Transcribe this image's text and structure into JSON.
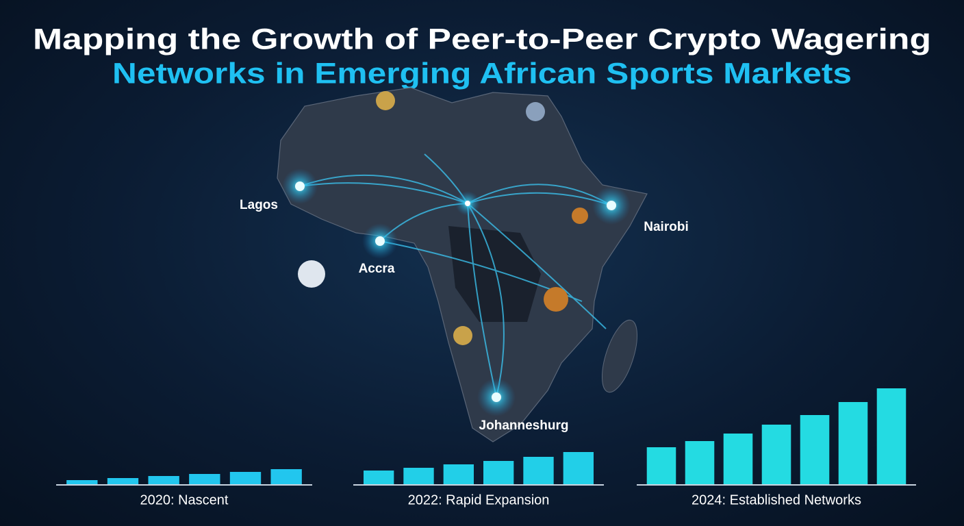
{
  "title": [
    "Mapping the Growth of Peer-to-Peer Crypto Wagering",
    "Networks in Emerging African Sports Markets"
  ],
  "map": {
    "cities": [
      "Lagos",
      "Accra",
      "Nairobi",
      "Johanneshurg"
    ]
  },
  "chart_data": [
    {
      "type": "bar",
      "title": "2020: Nascent",
      "categories": [
        null,
        null,
        null,
        null,
        null,
        null
      ],
      "values": [
        6,
        9,
        12,
        15,
        18,
        22
      ],
      "color": "#22c6ee",
      "ylim": [
        0,
        150
      ]
    },
    {
      "type": "bar",
      "title": "2022: Rapid Expansion",
      "categories": [
        null,
        null,
        null,
        null,
        null,
        null
      ],
      "values": [
        20,
        24,
        29,
        34,
        40,
        47
      ],
      "color": "#22cfe8",
      "ylim": [
        0,
        150
      ]
    },
    {
      "type": "bar",
      "title": "2024: Established Networks",
      "categories": [
        null,
        null,
        null,
        null,
        null,
        null,
        null
      ],
      "values": [
        54,
        63,
        74,
        87,
        101,
        120,
        140
      ],
      "color": "#24dbe2",
      "ylim": [
        0,
        150
      ]
    }
  ]
}
